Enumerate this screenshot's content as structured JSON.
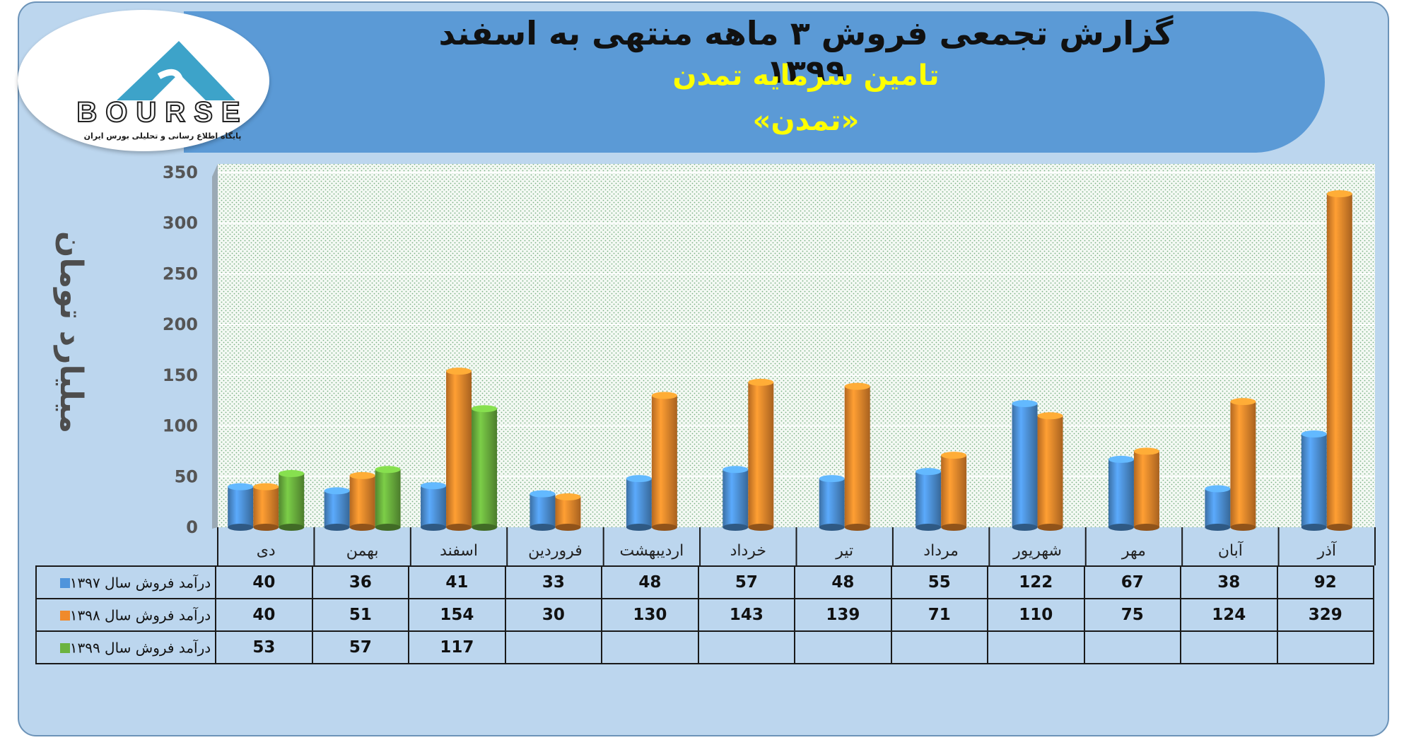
{
  "header": {
    "title": "گزارش تجمعی فروش ۳ ماهه منتهی به اسفند ۱۳۹۹",
    "company": "تامین سرمایه تمدن",
    "symbol": "«تمدن»"
  },
  "logo": {
    "brand": "BOURSE",
    "tagline": "پایگاه اطلاع رسانی و تحلیلی بورس ایران"
  },
  "colors": {
    "frame": "#bcd6ee",
    "banner": "#5b9ad6",
    "title": "#111111",
    "subtitle": "#ffff00"
  },
  "chart_data": {
    "type": "bar",
    "ylabel": "میلیارد تومان",
    "ylim": [
      0,
      350
    ],
    "yticks": [
      0,
      50,
      100,
      150,
      200,
      250,
      300,
      350
    ],
    "grid": true,
    "categories": [
      "دی",
      "بهمن",
      "اسفند",
      "فروردین",
      "اردیبهشت",
      "خرداد",
      "تیر",
      "مرداد",
      "شهریور",
      "مهر",
      "آبان",
      "آذر"
    ],
    "series": [
      {
        "name": "درآمد فروش سال ۱۳۹۷",
        "color": "#4f94db",
        "values": [
          40,
          36,
          41,
          33,
          48,
          57,
          48,
          55,
          122,
          67,
          38,
          92
        ]
      },
      {
        "name": "درآمد فروش سال ۱۳۹۸",
        "color": "#f08a2c",
        "values": [
          40,
          51,
          154,
          30,
          130,
          143,
          139,
          71,
          110,
          75,
          124,
          329
        ]
      },
      {
        "name": "درآمد فروش سال ۱۳۹۹",
        "color": "#6cb33f",
        "values": [
          53,
          57,
          117,
          null,
          null,
          null,
          null,
          null,
          null,
          null,
          null,
          null
        ]
      }
    ]
  }
}
